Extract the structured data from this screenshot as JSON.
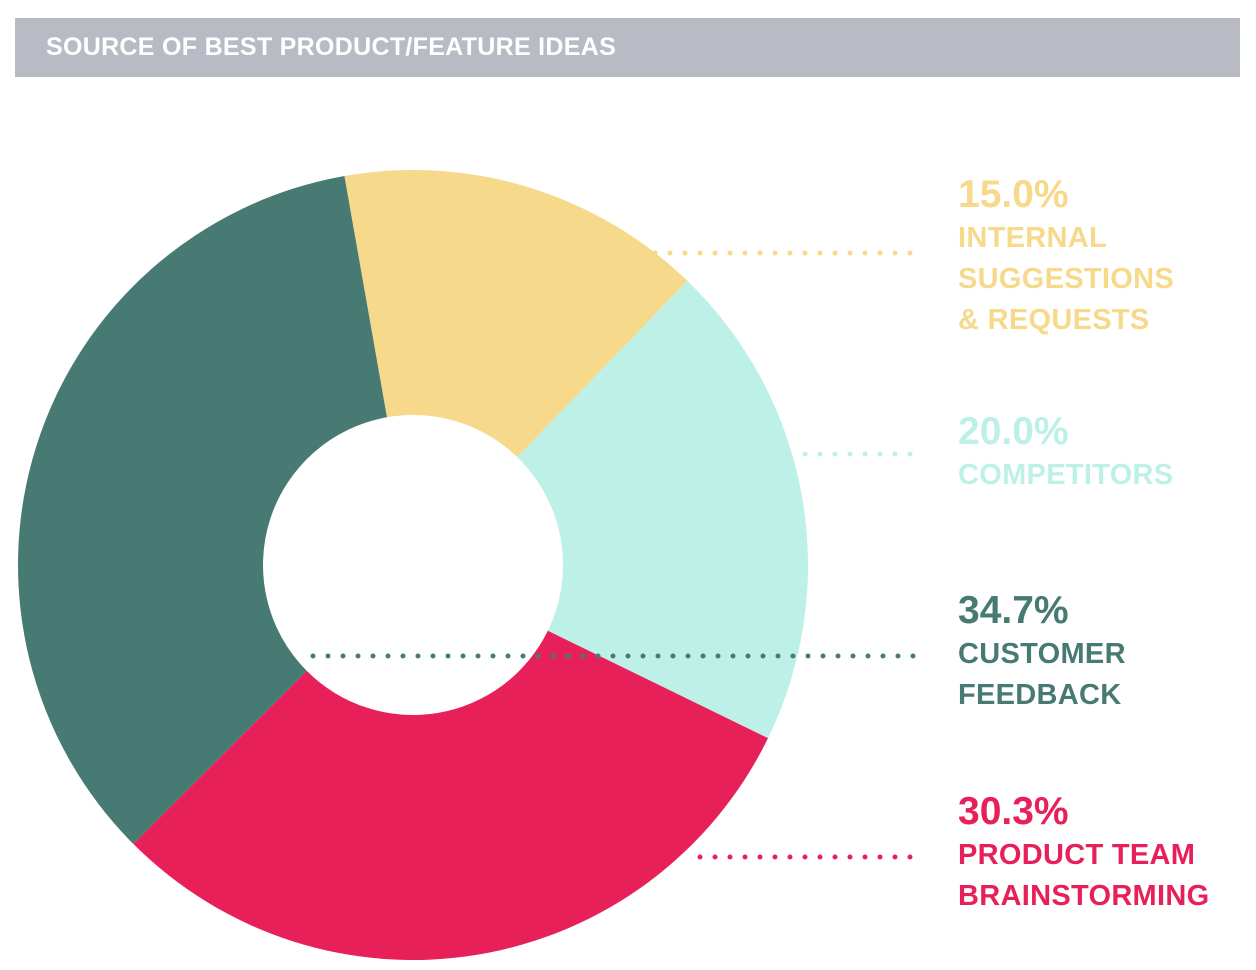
{
  "header": {
    "title": "SOURCE OF BEST PRODUCT/FEATURE IDEAS"
  },
  "chart_data": {
    "type": "pie",
    "title": "SOURCE OF BEST PRODUCT/FEATURE IDEAS",
    "donut": true,
    "slices": [
      {
        "label": "INTERNAL\nSUGGESTIONS\n& REQUESTS",
        "percent_label": "15.0%",
        "value": 15.0,
        "color": "#f6d98a"
      },
      {
        "label": "COMPETITORS",
        "percent_label": "20.0%",
        "value": 20.0,
        "color": "#bdf0e6"
      },
      {
        "label": "PRODUCT TEAM\nBRAINSTORMING",
        "percent_label": "30.3%",
        "value": 30.3,
        "color": "#e8205a"
      },
      {
        "label": "CUSTOMER\nFEEDBACK",
        "percent_label": "34.7%",
        "value": 34.7,
        "color": "#487a74"
      }
    ]
  }
}
